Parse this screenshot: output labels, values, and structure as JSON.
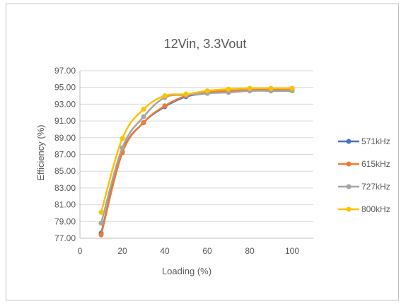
{
  "chart_data": {
    "type": "line",
    "title": "12Vin, 3.3Vout",
    "xlabel": "Loading (%)",
    "ylabel": "Efficiency (%)",
    "xlim": [
      0,
      110
    ],
    "ylim": [
      77,
      97
    ],
    "x_ticks": [
      "0",
      "20",
      "40",
      "60",
      "80",
      "100"
    ],
    "x_tick_values": [
      0,
      20,
      40,
      60,
      80,
      100
    ],
    "y_ticks": [
      "77.00",
      "79.00",
      "81.00",
      "83.00",
      "85.00",
      "87.00",
      "89.00",
      "91.00",
      "93.00",
      "95.00",
      "97.00"
    ],
    "y_tick_values": [
      77,
      79,
      81,
      83,
      85,
      87,
      89,
      91,
      93,
      95,
      97
    ],
    "grid": "horizontal",
    "legend_position": "right",
    "x": [
      10,
      20,
      30,
      40,
      50,
      60,
      70,
      80,
      90,
      100
    ],
    "series": [
      {
        "name": "571kHz",
        "color": "#4472c4",
        "values": [
          77.6,
          87.3,
          90.8,
          92.7,
          93.9,
          94.3,
          94.5,
          94.6,
          94.6,
          94.6
        ]
      },
      {
        "name": "615kHz",
        "color": "#ed7d31",
        "values": [
          77.4,
          87.2,
          90.8,
          92.8,
          94.0,
          94.4,
          94.6,
          94.7,
          94.7,
          94.7
        ]
      },
      {
        "name": "727kHz",
        "color": "#a5a5a5",
        "values": [
          78.8,
          87.8,
          91.5,
          93.8,
          94.1,
          94.3,
          94.4,
          94.6,
          94.6,
          94.6
        ]
      },
      {
        "name": "800kHz",
        "color": "#ffc000",
        "values": [
          80.1,
          88.9,
          92.4,
          94.0,
          94.2,
          94.6,
          94.8,
          94.9,
          94.9,
          94.9
        ]
      }
    ]
  }
}
